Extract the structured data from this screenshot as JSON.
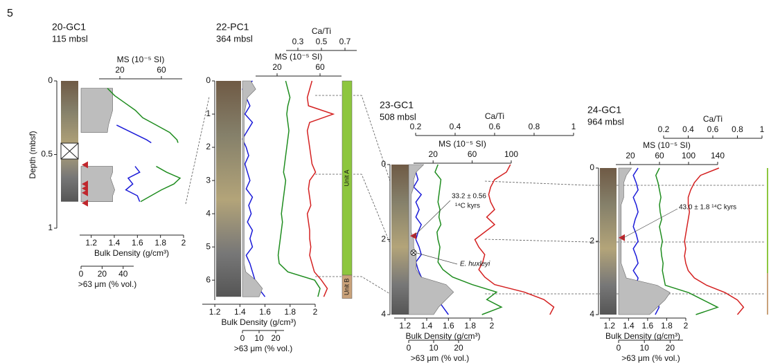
{
  "figure_label": "5",
  "depth_axis_title": "Depth (mbsf)",
  "chart_data": [
    {
      "type": "core-log",
      "title": "20-GC1",
      "subtitle": "115 mbsl",
      "depth": [
        0.05,
        0.1,
        0.15,
        0.2,
        0.25,
        0.3,
        0.35,
        0.4,
        0.42,
        0.48,
        0.58,
        0.62,
        0.66,
        0.7,
        0.74,
        0.78,
        0.82
      ],
      "depth_lim": [
        0,
        1
      ],
      "depth_ticks": [
        0,
        0.5,
        1
      ],
      "series": [
        {
          "name": "Bulk Density (g/cm³)",
          "color": "#1a1ad8",
          "axis": "bottom",
          "xlim": [
            1.1,
            2
          ],
          "xticks": [
            1.2,
            1.4,
            1.6,
            1.8,
            2
          ],
          "values": [
            null,
            null,
            null,
            null,
            null,
            1.42,
            1.55,
            1.68,
            1.72,
            null,
            1.58,
            1.62,
            1.52,
            1.56,
            1.5,
            1.6,
            1.62
          ]
        },
        {
          "name": ">63 μm (% vol.)",
          "color": "#bdbdbd",
          "axis": "bottom",
          "fill": true,
          "xlim": [
            0,
            50
          ],
          "xticks": [
            0,
            20,
            40
          ],
          "values": [
            30,
            30,
            30,
            30,
            28,
            26,
            25,
            null,
            null,
            null,
            30,
            30,
            28,
            30,
            32,
            30,
            30
          ]
        },
        {
          "name": "MS (10⁻⁵ SI)",
          "color": "#1e8c1e",
          "axis": "top",
          "xlim": [
            0,
            80
          ],
          "xticks": [
            20,
            60
          ],
          "values": [
            8,
            15,
            25,
            35,
            42,
            55,
            68,
            75,
            76,
            null,
            55,
            65,
            78,
            72,
            60,
            50,
            40
          ]
        }
      ],
      "triangles": [
        0.57,
        0.7,
        0.73,
        0.76,
        0.83
      ]
    },
    {
      "type": "core-log",
      "title": "22-PC1",
      "subtitle": "364 mbsl",
      "depth": [
        0,
        0.25,
        0.5,
        0.75,
        1,
        1.25,
        1.5,
        1.75,
        2,
        2.25,
        2.5,
        2.75,
        3,
        3.25,
        3.5,
        3.75,
        4,
        4.25,
        4.5,
        4.75,
        5,
        5.25,
        5.5,
        5.75,
        6,
        6.25,
        6.5
      ],
      "depth_lim": [
        0,
        6.6
      ],
      "depth_ticks": [
        0,
        1,
        2,
        3,
        4,
        5,
        6
      ],
      "series": [
        {
          "name": "Bulk Density (g/cm³)",
          "color": "#1a1ad8",
          "axis": "bottom",
          "xlim": [
            1.1,
            2
          ],
          "xticks": [
            1.2,
            1.4,
            1.6,
            1.8,
            2
          ],
          "values": [
            1.5,
            1.42,
            1.45,
            1.48,
            1.44,
            1.5,
            1.46,
            1.42,
            1.45,
            1.47,
            1.44,
            1.46,
            1.48,
            1.45,
            1.5,
            1.47,
            1.49,
            1.46,
            1.5,
            1.48,
            1.5,
            1.45,
            1.48,
            1.5,
            1.52,
            1.55,
            1.6
          ]
        },
        {
          "name": ">63 μm (% vol.)",
          "color": "#bdbdbd",
          "axis": "bottom",
          "fill": true,
          "xlim": [
            0,
            25
          ],
          "xticks": [
            0,
            10,
            20
          ],
          "values": [
            5,
            8,
            3,
            2,
            1,
            1,
            1,
            1,
            1,
            1,
            1,
            1,
            1,
            1,
            1,
            1,
            1,
            1,
            1,
            1,
            1,
            1,
            1,
            2,
            8,
            12,
            10
          ]
        },
        {
          "name": "MS (10⁻⁵ SI)",
          "color": "#1e8c1e",
          "axis": "top",
          "xlim": [
            0,
            80
          ],
          "xticks": [
            20,
            60
          ],
          "values": [
            28,
            30,
            32,
            30,
            29,
            30,
            31,
            30,
            29,
            28,
            27,
            26,
            28,
            27,
            26,
            25,
            24,
            25,
            24,
            23,
            22,
            21,
            22,
            30,
            55,
            60,
            58
          ]
        },
        {
          "name": "Ca/Ti",
          "color": "#d42020",
          "axis": "top",
          "xlim": [
            0.2,
            0.8
          ],
          "xticks": [
            0.3,
            0.5,
            0.7
          ],
          "values": [
            0.42,
            0.4,
            0.38,
            0.39,
            0.6,
            0.4,
            0.38,
            0.39,
            0.4,
            0.41,
            0.42,
            0.45,
            0.4,
            0.39,
            0.4,
            0.41,
            0.38,
            0.39,
            0.4,
            0.4,
            0.41,
            0.4,
            0.42,
            0.44,
            0.5,
            0.55,
            0.52
          ]
        }
      ],
      "units": [
        {
          "label": "Unit A",
          "top": 0,
          "base": 5.85,
          "color": "#8dc63f"
        },
        {
          "label": "Unit B",
          "top": 5.85,
          "base": 6.55,
          "color": "#c9a27a"
        }
      ]
    },
    {
      "type": "core-log",
      "title": "23-GC1",
      "subtitle": "508 mbsl",
      "depth": [
        0,
        0.2,
        0.4,
        0.6,
        0.8,
        1,
        1.2,
        1.4,
        1.6,
        1.8,
        2,
        2.2,
        2.4,
        2.6,
        2.8,
        3,
        3.2,
        3.4,
        3.6,
        3.8,
        4
      ],
      "depth_lim": [
        0,
        4
      ],
      "depth_ticks": [
        0,
        2,
        4
      ],
      "series": [
        {
          "name": "Bulk Density (g/cm³)",
          "color": "#1a1ad8",
          "axis": "bottom",
          "xlim": [
            1.1,
            2
          ],
          "xticks": [
            1.2,
            1.4,
            1.6,
            1.8,
            2
          ],
          "values": [
            1.35,
            1.3,
            1.32,
            1.28,
            1.35,
            1.3,
            1.33,
            1.3,
            1.35,
            1.32,
            1.3,
            1.33,
            1.35,
            1.3,
            1.32,
            1.35,
            1.4,
            1.45,
            1.5,
            1.55,
            1.6
          ]
        },
        {
          "name": ">63 μm (% vol.)",
          "color": "#bdbdbd",
          "axis": "bottom",
          "fill": true,
          "xlim": [
            0,
            25
          ],
          "xticks": [
            0,
            10,
            20
          ],
          "values": [
            6,
            3,
            2,
            2,
            1,
            1,
            1,
            1,
            1,
            1,
            2,
            2,
            3,
            3,
            3,
            5,
            15,
            18,
            15,
            12,
            10
          ]
        },
        {
          "name": "MS (10⁻⁵ SI)",
          "color": "#1e8c1e",
          "axis": "top",
          "xlim": [
            0,
            100
          ],
          "xticks": [
            20,
            60,
            100
          ],
          "values": [
            25,
            22,
            28,
            27,
            26,
            25,
            27,
            26,
            28,
            24,
            25,
            27,
            26,
            25,
            30,
            40,
            60,
            85,
            75,
            90,
            70
          ]
        },
        {
          "name": "Ca/Ti",
          "color": "#d42020",
          "axis": "top",
          "xlim": [
            0.2,
            1
          ],
          "xticks": [
            0.2,
            0.4,
            0.6,
            0.8,
            1
          ],
          "values": [
            0.68,
            0.66,
            0.6,
            0.58,
            0.57,
            0.58,
            0.6,
            0.56,
            0.6,
            0.55,
            0.5,
            0.52,
            0.55,
            0.54,
            0.52,
            0.55,
            0.6,
            0.75,
            0.85,
            0.9,
            0.88
          ]
        }
      ],
      "triangles": [
        1.9
      ],
      "crosses": [
        2.35
      ],
      "annotations": [
        "33.2 ± 0.56",
        "¹⁴C kyrs",
        "E. huxleyi"
      ]
    },
    {
      "type": "core-log",
      "title": "24-GC1",
      "subtitle": "964 mbsl",
      "depth": [
        0,
        0.2,
        0.4,
        0.6,
        0.8,
        1,
        1.2,
        1.4,
        1.6,
        1.8,
        2,
        2.2,
        2.4,
        2.6,
        2.8,
        3,
        3.2,
        3.4,
        3.6,
        3.8,
        4
      ],
      "depth_lim": [
        0,
        4
      ],
      "depth_ticks": [
        0,
        2,
        4
      ],
      "series": [
        {
          "name": "Bulk Density (g/cm³)",
          "color": "#1a1ad8",
          "axis": "bottom",
          "xlim": [
            1.1,
            2
          ],
          "xticks": [
            1.2,
            1.4,
            1.6,
            1.8,
            2
          ],
          "values": [
            1.5,
            1.45,
            1.48,
            1.5,
            1.45,
            1.48,
            1.5,
            1.47,
            1.45,
            1.48,
            1.5,
            1.45,
            1.48,
            1.5,
            1.45,
            1.5,
            1.48,
            1.65,
            1.7,
            1.72,
            1.68
          ]
        },
        {
          "name": ">63 μm (% vol.)",
          "color": "#bdbdbd",
          "axis": "bottom",
          "fill": true,
          "xlim": [
            0,
            25
          ],
          "xticks": [
            0,
            10,
            20
          ],
          "values": [
            5,
            3,
            2,
            2,
            2,
            1,
            1,
            1,
            1,
            1,
            1,
            1,
            1,
            1,
            2,
            3,
            15,
            20,
            18,
            15,
            12
          ]
        },
        {
          "name": "MS (10⁻⁵ SI)",
          "color": "#1e8c1e",
          "axis": "top",
          "xlim": [
            0,
            140
          ],
          "xticks": [
            20,
            60,
            100,
            140
          ],
          "values": [
            60,
            55,
            58,
            60,
            62,
            60,
            61,
            63,
            60,
            62,
            64,
            62,
            63,
            65,
            64,
            66,
            68,
            100,
            120,
            140,
            110
          ]
        },
        {
          "name": "Ca/Ti",
          "color": "#d42020",
          "axis": "top",
          "xlim": [
            0.2,
            1
          ],
          "xticks": [
            0.2,
            0.4,
            0.6,
            0.8,
            1
          ],
          "values": [
            0.65,
            0.5,
            0.45,
            0.42,
            0.4,
            0.4,
            0.41,
            0.4,
            0.39,
            0.38,
            0.37,
            0.38,
            0.37,
            0.38,
            0.4,
            0.45,
            0.55,
            0.7,
            0.8,
            0.85,
            0.8
          ]
        }
      ],
      "triangles": [
        1.9
      ],
      "annotations": [
        "43.0 ± 1.8 ¹⁴C kyrs"
      ]
    }
  ]
}
